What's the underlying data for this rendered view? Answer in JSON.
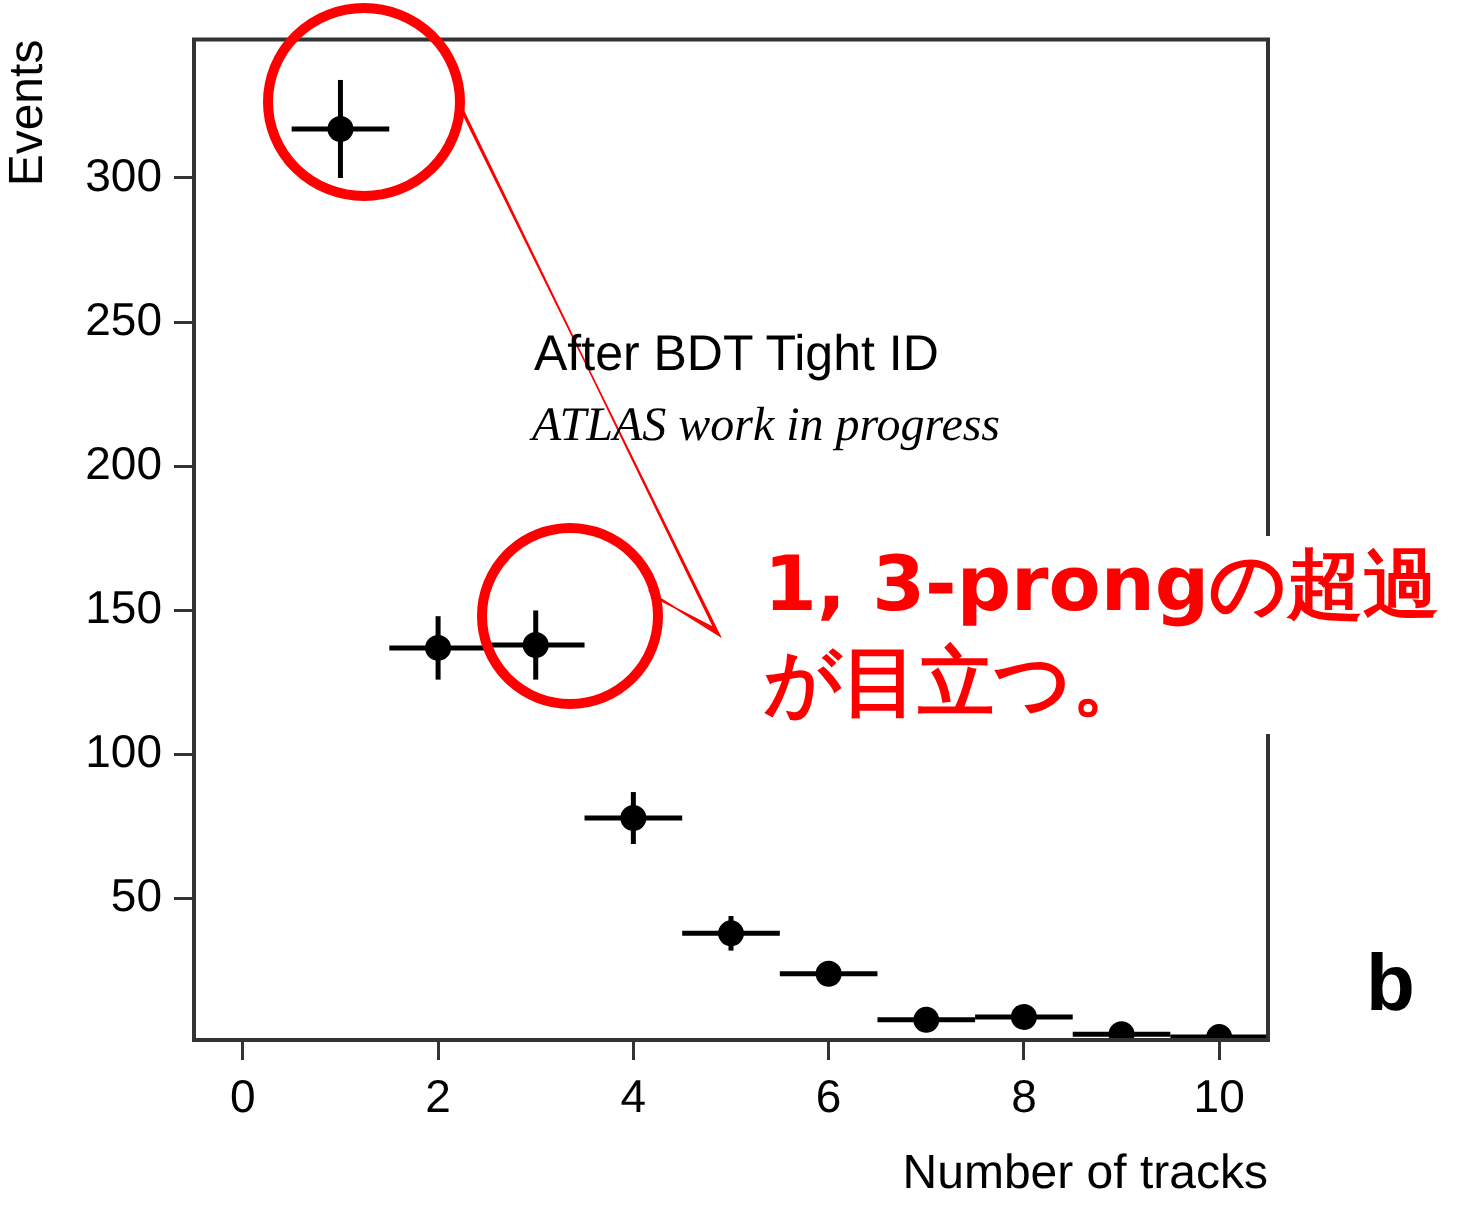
{
  "chart_data": {
    "type": "scatter",
    "xlabel": "Number of tracks",
    "ylabel": "Events",
    "x": [
      1,
      2,
      3,
      4,
      5,
      6,
      7,
      8,
      9,
      10
    ],
    "values": [
      317,
      137,
      138,
      78,
      38,
      24,
      8,
      9,
      3,
      2
    ],
    "errors": [
      17,
      11,
      12,
      9,
      6,
      4,
      3,
      3,
      2,
      1.5
    ],
    "xerrors": [
      0.5,
      0.5,
      0.5,
      0.5,
      0.5,
      0.5,
      0.5,
      0.5,
      0.5,
      0.5
    ],
    "color": "#000000",
    "marker": "circle",
    "grid": false,
    "legend": false,
    "xlim": [
      -0.5,
      10.5
    ],
    "ylim": [
      1,
      348
    ],
    "xticks": [
      0,
      2,
      4,
      6,
      8,
      10
    ],
    "yticks": [
      50,
      100,
      150,
      200,
      250,
      300
    ],
    "annotations": [
      "After BDT Tight ID",
      "ATLAS work in progress",
      "1, 3-prongの超過が目立つ。",
      "b"
    ]
  }
}
